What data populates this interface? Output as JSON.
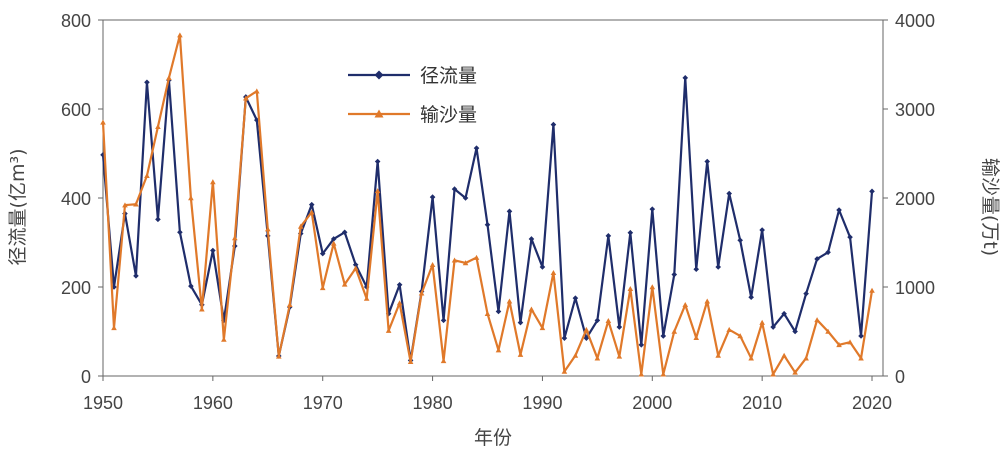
{
  "chart_data": {
    "type": "line",
    "xlabel": "年份",
    "ylabel_left": "径流量(亿m³)",
    "ylabel_right": "输沙量(万t)",
    "xlim": [
      1950,
      2021
    ],
    "ylim_left": [
      0,
      800
    ],
    "ylim_right": [
      0,
      4000
    ],
    "x_ticks": [
      "1950",
      "1960",
      "1970",
      "1980",
      "1990",
      "2000",
      "2010",
      "2020"
    ],
    "y_left_ticks": [
      "0",
      "200",
      "400",
      "600",
      "800"
    ],
    "y_right_ticks": [
      "0",
      "1000",
      "2000",
      "3000",
      "4000"
    ],
    "legend_position": "top-center",
    "x": [
      1950,
      1951,
      1952,
      1953,
      1954,
      1955,
      1956,
      1957,
      1958,
      1959,
      1960,
      1961,
      1962,
      1963,
      1964,
      1965,
      1966,
      1967,
      1968,
      1969,
      1970,
      1971,
      1972,
      1973,
      1974,
      1975,
      1976,
      1977,
      1978,
      1979,
      1980,
      1981,
      1982,
      1983,
      1984,
      1985,
      1986,
      1987,
      1988,
      1989,
      1990,
      1991,
      1992,
      1993,
      1994,
      1995,
      1996,
      1997,
      1998,
      1999,
      2000,
      2001,
      2002,
      2003,
      2004,
      2005,
      2006,
      2007,
      2008,
      2009,
      2010,
      2011,
      2012,
      2013,
      2014,
      2015,
      2016,
      2017,
      2018,
      2019,
      2020
    ],
    "series": [
      {
        "name": "径流量",
        "axis": "left",
        "color": "#1f2d6b",
        "marker": "diamond",
        "values": [
          497,
          200,
          365,
          225,
          660,
          352,
          665,
          323,
          202,
          160,
          282,
          125,
          292,
          627,
          575,
          315,
          45,
          155,
          320,
          385,
          275,
          308,
          323,
          250,
          200,
          482,
          140,
          205,
          35,
          190,
          402,
          125,
          420,
          400,
          512,
          340,
          145,
          370,
          120,
          308,
          245,
          565,
          85,
          175,
          85,
          125,
          315,
          110,
          322,
          70,
          375,
          90,
          228,
          670,
          240,
          482,
          245,
          410,
          305,
          177,
          328,
          110,
          140,
          100,
          185,
          263,
          278,
          373,
          312,
          90,
          415
        ]
      },
      {
        "name": "输沙量",
        "axis": "right",
        "color": "#e0792a",
        "marker": "triangle",
        "values": [
          2850,
          540,
          1920,
          1930,
          2250,
          2800,
          3350,
          3830,
          2000,
          750,
          2180,
          410,
          1550,
          3120,
          3200,
          1650,
          220,
          800,
          1680,
          1840,
          990,
          1490,
          1030,
          1210,
          870,
          2080,
          510,
          820,
          160,
          930,
          1250,
          170,
          1300,
          1270,
          1330,
          700,
          290,
          840,
          240,
          750,
          540,
          1160,
          50,
          230,
          520,
          200,
          620,
          220,
          980,
          20,
          1000,
          20,
          500,
          800,
          430,
          840,
          230,
          520,
          450,
          200,
          600,
          20,
          230,
          40,
          200,
          630,
          500,
          350,
          380,
          200,
          960
        ]
      }
    ]
  }
}
